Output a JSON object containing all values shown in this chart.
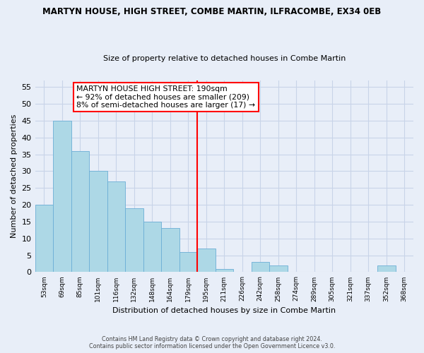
{
  "title": "MARTYN HOUSE, HIGH STREET, COMBE MARTIN, ILFRACOMBE, EX34 0EB",
  "subtitle": "Size of property relative to detached houses in Combe Martin",
  "xlabel": "Distribution of detached houses by size in Combe Martin",
  "ylabel": "Number of detached properties",
  "bin_labels": [
    "53sqm",
    "69sqm",
    "85sqm",
    "101sqm",
    "116sqm",
    "132sqm",
    "148sqm",
    "164sqm",
    "179sqm",
    "195sqm",
    "211sqm",
    "226sqm",
    "242sqm",
    "258sqm",
    "274sqm",
    "289sqm",
    "305sqm",
    "321sqm",
    "337sqm",
    "352sqm",
    "368sqm"
  ],
  "bar_heights": [
    20,
    45,
    36,
    30,
    27,
    19,
    15,
    13,
    6,
    7,
    1,
    0,
    3,
    2,
    0,
    0,
    0,
    0,
    0,
    2,
    0
  ],
  "bar_color": "#add8e6",
  "bar_edge_color": "#6baed6",
  "vline_color": "red",
  "annotation_title": "MARTYN HOUSE HIGH STREET: 190sqm",
  "annotation_line1": "← 92% of detached houses are smaller (209)",
  "annotation_line2": "8% of semi-detached houses are larger (17) →",
  "ylim": [
    0,
    57
  ],
  "yticks": [
    0,
    5,
    10,
    15,
    20,
    25,
    30,
    35,
    40,
    45,
    50,
    55
  ],
  "footer1": "Contains HM Land Registry data © Crown copyright and database right 2024.",
  "footer2": "Contains public sector information licensed under the Open Government Licence v3.0.",
  "background_color": "#e8eef8",
  "grid_color": "#c8d4e8"
}
